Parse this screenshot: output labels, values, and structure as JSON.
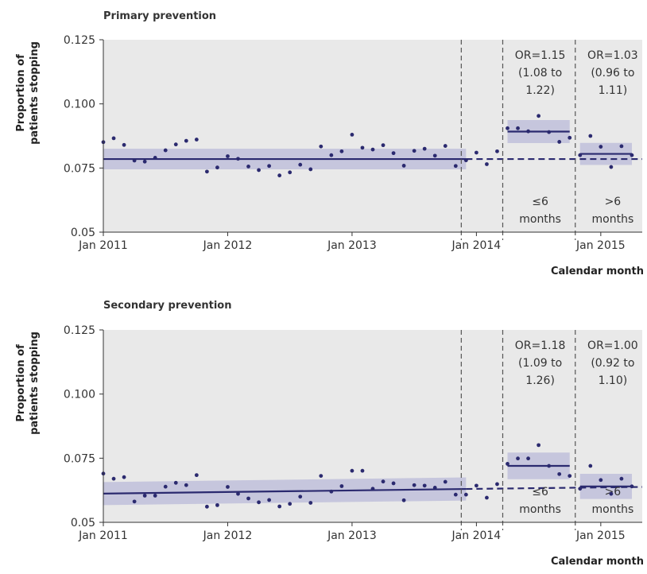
{
  "colors": {
    "plot_bg": "#e9e9e9",
    "navy": "#2b2a6f",
    "band": "#a9a9d4",
    "divider": "#555555",
    "axis": "#333333"
  },
  "x_label": "Calendar month",
  "y_label_line1": "Proportion of",
  "y_label_line2": "patients stopping",
  "chart_data": [
    {
      "type": "scatter",
      "title": "Primary prevention",
      "xlabel": "Calendar month",
      "ylabel": "Proportion of patients stopping",
      "xlim": [
        "2011-01",
        "2015-05"
      ],
      "ylim": [
        0.05,
        0.125
      ],
      "x_ticks": [
        "Jan 2011",
        "Jan 2012",
        "Jan 2013",
        "Jan 2014",
        "Jan 2015"
      ],
      "y_ticks": [
        "0.05",
        "0.075",
        "0.100",
        "0.125"
      ],
      "x": [
        "2011-01",
        "2011-02",
        "2011-03",
        "2011-04",
        "2011-05",
        "2011-06",
        "2011-07",
        "2011-08",
        "2011-09",
        "2011-10",
        "2011-11",
        "2011-12",
        "2012-01",
        "2012-02",
        "2012-03",
        "2012-04",
        "2012-05",
        "2012-06",
        "2012-07",
        "2012-08",
        "2012-09",
        "2012-10",
        "2012-11",
        "2012-12",
        "2013-01",
        "2013-02",
        "2013-03",
        "2013-04",
        "2013-05",
        "2013-06",
        "2013-07",
        "2013-08",
        "2013-09",
        "2013-10",
        "2013-11",
        "2013-12",
        "2014-01",
        "2014-02",
        "2014-03",
        "2014-04",
        "2014-05",
        "2014-06",
        "2014-07",
        "2014-08",
        "2014-09",
        "2014-10",
        "2014-11",
        "2014-12",
        "2015-01",
        "2015-02",
        "2015-03",
        "2015-04"
      ],
      "y": [
        0.0851,
        0.0866,
        0.084,
        0.0779,
        0.0775,
        0.079,
        0.0819,
        0.0842,
        0.0856,
        0.0861,
        0.0736,
        0.0752,
        0.0796,
        0.0786,
        0.0756,
        0.0742,
        0.0758,
        0.0721,
        0.0733,
        0.0763,
        0.0745,
        0.0834,
        0.08,
        0.0815,
        0.088,
        0.0829,
        0.0822,
        0.0839,
        0.0808,
        0.0759,
        0.0817,
        0.0825,
        0.0798,
        0.0836,
        0.0758,
        0.078,
        0.081,
        0.0765,
        0.0815,
        0.0905,
        0.0905,
        0.0893,
        0.0953,
        0.089,
        0.0852,
        0.0868,
        0.08,
        0.0875,
        0.0833,
        0.0754,
        0.0835,
        0.08
      ],
      "series": [
        {
          "type": "line",
          "x": [
            "2011-01",
            "2013-12"
          ],
          "y": [
            0.0785,
            0.0785
          ],
          "band": [
            0.0745,
            0.0825
          ]
        },
        {
          "type": "dashed-line",
          "x": [
            "2013-12",
            "2015-05"
          ],
          "y": [
            0.0785,
            0.0785
          ]
        },
        {
          "type": "line",
          "x": [
            "2014-04",
            "2014-10"
          ],
          "y": [
            0.0892,
            0.0892
          ],
          "band": [
            0.0847,
            0.0937
          ]
        },
        {
          "type": "line",
          "x": [
            "2014-11",
            "2015-04"
          ],
          "y": [
            0.0805,
            0.0805
          ],
          "band": [
            0.0762,
            0.0852
          ]
        }
      ],
      "divider_lines": [
        "2013-12",
        "2014-04",
        "2014-11"
      ],
      "annotations": [
        {
          "at": "2014-07",
          "lines": [
            "OR=1.15",
            "(1.08 to",
            "1.22)"
          ]
        },
        {
          "at": "2015-02",
          "lines": [
            "OR=1.03",
            "(0.96 to",
            "1.11)"
          ]
        },
        {
          "at": "2014-07",
          "lines": [
            "≤6",
            "months"
          ]
        },
        {
          "at": "2015-02",
          "lines": [
            ">6",
            "months"
          ]
        }
      ]
    },
    {
      "type": "scatter",
      "title": "Secondary prevention",
      "xlabel": "Calendar month",
      "ylabel": "Proportion of patients stopping",
      "xlim": [
        "2011-01",
        "2015-05"
      ],
      "ylim": [
        0.05,
        0.125
      ],
      "x_ticks": [
        "Jan 2011",
        "Jan 2012",
        "Jan 2013",
        "Jan 2014",
        "Jan 2015"
      ],
      "y_ticks": [
        "0.05",
        "0.075",
        "0.100",
        "0.125"
      ],
      "x": [
        "2011-01",
        "2011-02",
        "2011-03",
        "2011-04",
        "2011-05",
        "2011-06",
        "2011-07",
        "2011-08",
        "2011-09",
        "2011-10",
        "2011-11",
        "2011-12",
        "2012-01",
        "2012-02",
        "2012-03",
        "2012-04",
        "2012-05",
        "2012-06",
        "2012-07",
        "2012-08",
        "2012-09",
        "2012-10",
        "2012-11",
        "2012-12",
        "2013-01",
        "2013-02",
        "2013-03",
        "2013-04",
        "2013-05",
        "2013-06",
        "2013-07",
        "2013-08",
        "2013-09",
        "2013-10",
        "2013-11",
        "2013-12",
        "2014-01",
        "2014-02",
        "2014-03",
        "2014-04",
        "2014-05",
        "2014-06",
        "2014-07",
        "2014-08",
        "2014-09",
        "2014-10",
        "2014-11",
        "2014-12",
        "2015-01",
        "2015-02",
        "2015-03",
        "2015-04"
      ],
      "y": [
        0.069,
        0.067,
        0.0676,
        0.0581,
        0.0604,
        0.0604,
        0.0639,
        0.0654,
        0.0645,
        0.0684,
        0.0561,
        0.0567,
        0.0638,
        0.0611,
        0.0593,
        0.0578,
        0.0587,
        0.0562,
        0.0572,
        0.06,
        0.0576,
        0.0681,
        0.062,
        0.0641,
        0.0701,
        0.0701,
        0.0631,
        0.0659,
        0.0652,
        0.0586,
        0.0645,
        0.0643,
        0.0635,
        0.0658,
        0.0608,
        0.0608,
        0.0643,
        0.0596,
        0.0649,
        0.0728,
        0.0749,
        0.0749,
        0.0801,
        0.072,
        0.0688,
        0.0681,
        0.0631,
        0.072,
        0.0665,
        0.0611,
        0.067,
        0.064
      ],
      "series": [
        {
          "type": "line",
          "x": [
            "2011-01",
            "2013-12"
          ],
          "y": [
            0.0612,
            0.063
          ],
          "band": [
            0.0567,
            0.0585
          ]
        },
        {
          "type": "dashed-line",
          "x": [
            "2013-12",
            "2015-05"
          ],
          "y": [
            0.063,
            0.0638
          ]
        },
        {
          "type": "line",
          "x": [
            "2014-04",
            "2014-10"
          ],
          "y": [
            0.072,
            0.072
          ],
          "band": [
            0.0668,
            0.0772
          ]
        },
        {
          "type": "line",
          "x": [
            "2014-11",
            "2015-04"
          ],
          "y": [
            0.064,
            0.064
          ],
          "band": [
            0.0591,
            0.0689
          ]
        }
      ],
      "divider_lines": [
        "2013-12",
        "2014-04",
        "2014-11"
      ],
      "annotations": [
        {
          "at": "2014-07",
          "lines": [
            "OR=1.18",
            "(1.09 to",
            "1.26)"
          ]
        },
        {
          "at": "2015-02",
          "lines": [
            "OR=1.00",
            "(0.92 to",
            "1.10)"
          ]
        },
        {
          "at": "2014-07",
          "lines": [
            "≤6",
            "months"
          ]
        },
        {
          "at": "2015-02",
          "lines": [
            ">6",
            "months"
          ]
        }
      ]
    }
  ]
}
